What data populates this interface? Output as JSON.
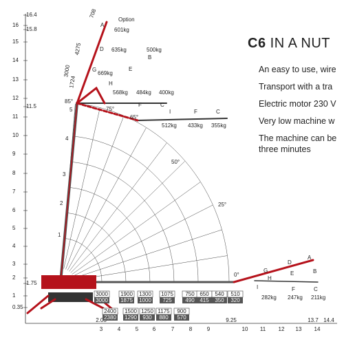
{
  "y_axis_labels": [
    "16.4",
    "16",
    "15.8",
    "15",
    "14",
    "13",
    "12",
    "11.5",
    "11",
    "10",
    "9",
    "8",
    "7",
    "6",
    "5",
    "4",
    "3",
    "2",
    "1.75",
    "1",
    "0.35"
  ],
  "x_axis_labels": [
    "2.05",
    "3",
    "4",
    "5",
    "6",
    "7",
    "8",
    "9",
    "9.25",
    "10",
    "11",
    "12",
    "13",
    "13.7",
    "14",
    "14.4"
  ],
  "boom_labels": [
    "Option",
    "A",
    "601kg",
    "708",
    "D",
    "635kg",
    "4275",
    "500kg",
    "B",
    "3000",
    "G",
    "669kg",
    "E",
    "1724",
    "H",
    "568kg",
    "484kg",
    "400kg",
    "85°",
    "F",
    "C",
    "75°",
    "65°",
    "I",
    "F",
    "C",
    "512kg",
    "433kg",
    "355kg",
    "50°",
    "25°",
    "0°",
    "5",
    "4",
    "3",
    "2",
    "1",
    "G",
    "D",
    "A",
    "E",
    "B",
    "H",
    "I",
    "F",
    "C",
    "282kg",
    "247kg",
    "211kg"
  ],
  "load_table": [
    [
      "3000",
      "3000"
    ],
    [
      "1900",
      "1875"
    ],
    [
      "1300",
      "1000"
    ],
    [
      "1075",
      "725"
    ],
    [
      "750",
      "490"
    ],
    [
      "650",
      "415"
    ],
    [
      "540",
      "350"
    ],
    [
      "510",
      "320"
    ],
    [
      "2400",
      "2380"
    ],
    [
      "1500",
      "1290"
    ],
    [
      "1250",
      "930"
    ],
    [
      "1175",
      "880"
    ],
    [
      "900",
      "570"
    ]
  ],
  "text_panel": {
    "title_bold": "C6",
    "title": "IN A NUT",
    "lines": [
      "An easy to use, wire",
      "Transport with a tra",
      "Electric motor 230 V",
      "Very low machine w",
      "The machine can be",
      "three minutes"
    ]
  }
}
